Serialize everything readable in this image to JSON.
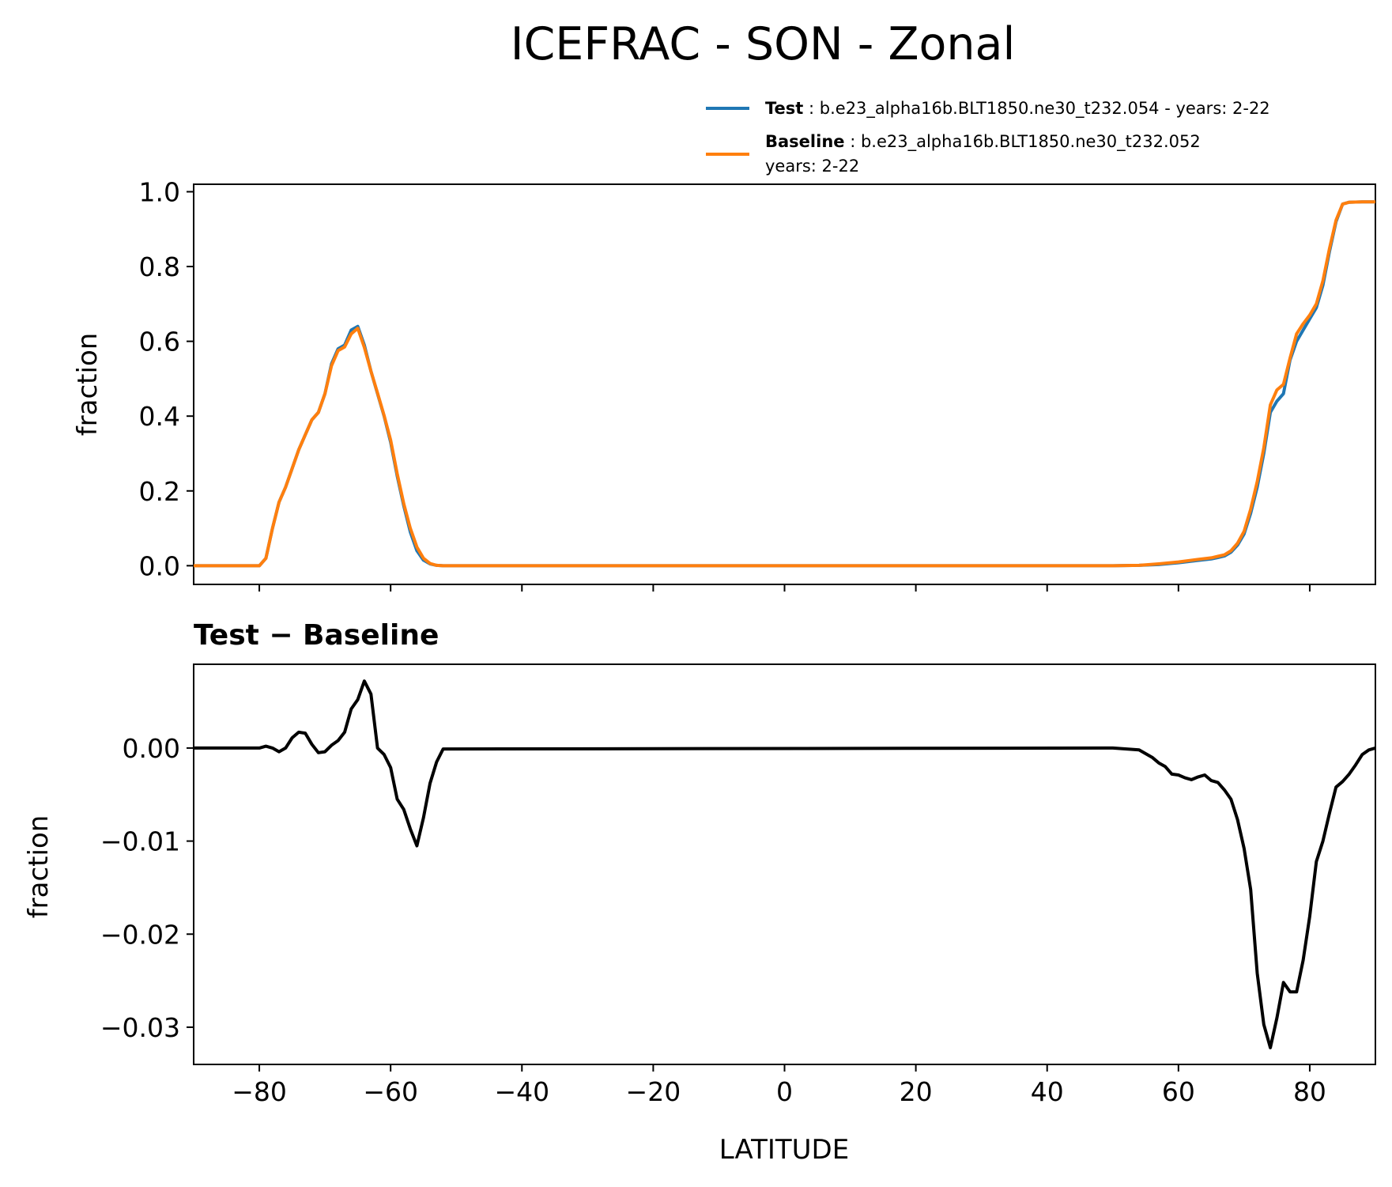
{
  "figure": {
    "title": "ICEFRAC - SON - Zonal"
  },
  "legend": {
    "entries": [
      {
        "name": "Test",
        "separator": " : ",
        "text": "b.e23_alpha16b.BLT1850.ne30_t232.054 - years: 2-22",
        "color": "#1f77b4"
      },
      {
        "name": "Baseline",
        "separator": " : ",
        "text": "b.e23_alpha16b.BLT1850.ne30_t232.052",
        "text2": "years: 2-22",
        "color": "#ff7f0e"
      }
    ]
  },
  "chart_data": [
    {
      "type": "line",
      "panel": "top",
      "xlabel": "",
      "ylabel": "fraction",
      "xlim": [
        -90,
        90
      ],
      "ylim": [
        -0.05,
        1.02
      ],
      "xticks": [
        -80,
        -60,
        -40,
        -20,
        0,
        20,
        40,
        60,
        80
      ],
      "yticks": [
        0.0,
        0.2,
        0.4,
        0.6,
        0.8,
        1.0
      ],
      "ytick_labels": [
        "0.0",
        "0.2",
        "0.4",
        "0.6",
        "0.8",
        "1.0"
      ],
      "grid": false,
      "series": [
        {
          "name": "Test",
          "color": "#1f77b4",
          "x": [
            -90,
            -80,
            -79,
            -78,
            -77,
            -76,
            -75,
            -74,
            -73,
            -72,
            -71,
            -70,
            -69,
            -68,
            -67,
            -66,
            -65,
            -64,
            -63,
            -62,
            -61,
            -60,
            -59,
            -58,
            -57,
            -56,
            -55,
            -54,
            -53,
            -52,
            50,
            54,
            57,
            60,
            63,
            65,
            66,
            67,
            68,
            69,
            70,
            71,
            72,
            73,
            74,
            75,
            76,
            77,
            78,
            79,
            80,
            81,
            82,
            83,
            84,
            85,
            86,
            88,
            90
          ],
          "y": [
            0,
            0,
            0.02,
            0.1,
            0.17,
            0.21,
            0.26,
            0.31,
            0.35,
            0.39,
            0.41,
            0.46,
            0.54,
            0.58,
            0.59,
            0.63,
            0.64,
            0.59,
            0.52,
            0.46,
            0.4,
            0.33,
            0.24,
            0.16,
            0.09,
            0.04,
            0.015,
            0.005,
            0.001,
            0,
            0,
            0.001,
            0.003,
            0.008,
            0.014,
            0.018,
            0.022,
            0.026,
            0.036,
            0.055,
            0.085,
            0.14,
            0.21,
            0.3,
            0.41,
            0.44,
            0.46,
            0.55,
            0.6,
            0.63,
            0.66,
            0.69,
            0.75,
            0.84,
            0.92,
            0.967,
            0.972,
            0.973,
            0.973
          ]
        },
        {
          "name": "Baseline",
          "color": "#ff7f0e",
          "x": [
            -90,
            -80,
            -79,
            -78,
            -77,
            -76,
            -75,
            -74,
            -73,
            -72,
            -71,
            -70,
            -69,
            -68,
            -67,
            -66,
            -65,
            -64,
            -63,
            -62,
            -61,
            -60,
            -59,
            -58,
            -57,
            -56,
            -55,
            -54,
            -53,
            -52,
            50,
            54,
            57,
            60,
            63,
            65,
            66,
            67,
            68,
            69,
            70,
            71,
            72,
            73,
            74,
            75,
            76,
            77,
            78,
            79,
            80,
            81,
            82,
            83,
            84,
            85,
            86,
            88,
            90
          ],
          "y": [
            0,
            0,
            0.02,
            0.1,
            0.17,
            0.21,
            0.26,
            0.31,
            0.35,
            0.39,
            0.41,
            0.46,
            0.535,
            0.575,
            0.585,
            0.62,
            0.635,
            0.584,
            0.52,
            0.462,
            0.402,
            0.336,
            0.246,
            0.166,
            0.1,
            0.05,
            0.02,
            0.006,
            0.001,
            0,
            0,
            0.001,
            0.005,
            0.01,
            0.017,
            0.021,
            0.025,
            0.029,
            0.04,
            0.06,
            0.092,
            0.151,
            0.225,
            0.315,
            0.43,
            0.47,
            0.485,
            0.555,
            0.62,
            0.647,
            0.67,
            0.7,
            0.762,
            0.848,
            0.924,
            0.967,
            0.972,
            0.973,
            0.973
          ]
        }
      ]
    },
    {
      "type": "line",
      "panel": "bottom",
      "title": "Test − Baseline",
      "xlabel": "LATITUDE",
      "ylabel": "fraction",
      "xlim": [
        -90,
        90
      ],
      "ylim": [
        -0.034,
        0.009
      ],
      "xticks": [
        -80,
        -60,
        -40,
        -20,
        0,
        20,
        40,
        60,
        80
      ],
      "xtick_labels": [
        "−80",
        "−60",
        "−40",
        "−20",
        "0",
        "20",
        "40",
        "60",
        "80"
      ],
      "yticks": [
        0.0,
        -0.01,
        -0.02,
        -0.03
      ],
      "ytick_labels": [
        "0.00",
        "−0.01",
        "−0.02",
        "−0.03"
      ],
      "grid": false,
      "series": [
        {
          "name": "Test − Baseline",
          "color": "#000000",
          "x": [
            -90,
            -80,
            -79,
            -78,
            -77,
            -76,
            -75,
            -74,
            -73,
            -72,
            -71,
            -70,
            -69,
            -68,
            -67,
            -66,
            -65,
            -64,
            -63,
            -62,
            -61,
            -60,
            -59,
            -58,
            -57,
            -56,
            -55,
            -54,
            -53,
            -52,
            50,
            54,
            55,
            56,
            57,
            58,
            59,
            60,
            61,
            62,
            63,
            64,
            65,
            66,
            67,
            68,
            69,
            70,
            71,
            72,
            73,
            74,
            75,
            76,
            77,
            78,
            79,
            80,
            81,
            82,
            83,
            84,
            85,
            86,
            87,
            88,
            89,
            90
          ],
          "y": [
            0,
            0,
            0.0002,
            0,
            -0.0004,
            0,
            0.0011,
            0.0017,
            0.0016,
            0.0004,
            -0.0005,
            -0.0004,
            0.0003,
            0.0008,
            0.0017,
            0.0042,
            0.0052,
            0.0072,
            0.0058,
            0,
            -0.0007,
            -0.0021,
            -0.0055,
            -0.0066,
            -0.0087,
            -0.0105,
            -0.0075,
            -0.0038,
            -0.0015,
            -0.0001,
            0,
            -0.0002,
            -0.0006,
            -0.001,
            -0.0016,
            -0.002,
            -0.0028,
            -0.0029,
            -0.0032,
            -0.0034,
            -0.0031,
            -0.0029,
            -0.0035,
            -0.0037,
            -0.0045,
            -0.0055,
            -0.0077,
            -0.0108,
            -0.0152,
            -0.0242,
            -0.0297,
            -0.0322,
            -0.029,
            -0.0252,
            -0.0262,
            -0.0262,
            -0.0228,
            -0.0181,
            -0.0122,
            -0.01,
            -0.007,
            -0.0042,
            -0.0036,
            -0.0028,
            -0.0018,
            -0.0007,
            -0.0002,
            0
          ]
        }
      ]
    }
  ]
}
